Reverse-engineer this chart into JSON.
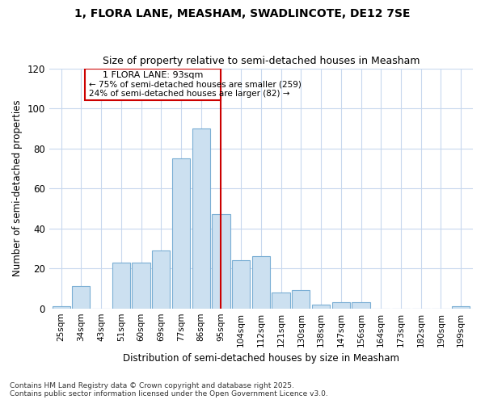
{
  "title1": "1, FLORA LANE, MEASHAM, SWADLINCOTE, DE12 7SE",
  "title2": "Size of property relative to semi-detached houses in Measham",
  "xlabel": "Distribution of semi-detached houses by size in Measham",
  "ylabel": "Number of semi-detached properties",
  "bar_labels": [
    "25sqm",
    "34sqm",
    "43sqm",
    "51sqm",
    "60sqm",
    "69sqm",
    "77sqm",
    "86sqm",
    "95sqm",
    "104sqm",
    "112sqm",
    "121sqm",
    "130sqm",
    "138sqm",
    "147sqm",
    "156sqm",
    "164sqm",
    "173sqm",
    "182sqm",
    "190sqm",
    "199sqm"
  ],
  "bar_values": [
    1,
    11,
    0,
    23,
    23,
    29,
    75,
    90,
    47,
    24,
    26,
    8,
    9,
    2,
    3,
    3,
    0,
    0,
    0,
    0,
    1
  ],
  "bar_color": "#cce0f0",
  "bar_edge_color": "#7aaed4",
  "vline_x": 8.0,
  "vline_color": "#cc0000",
  "vline_label": "1 FLORA LANE: 93sqm",
  "box_text1": "← 75% of semi-detached houses are smaller (259)",
  "box_text2": "24% of semi-detached houses are larger (82) →",
  "ylim": [
    0,
    120
  ],
  "yticks": [
    0,
    20,
    40,
    60,
    80,
    100,
    120
  ],
  "fig_bg_color": "#ffffff",
  "ax_bg_color": "#ffffff",
  "grid_color": "#c8d8ee",
  "footnote1": "Contains HM Land Registry data © Crown copyright and database right 2025.",
  "footnote2": "Contains public sector information licensed under the Open Government Licence v3.0."
}
